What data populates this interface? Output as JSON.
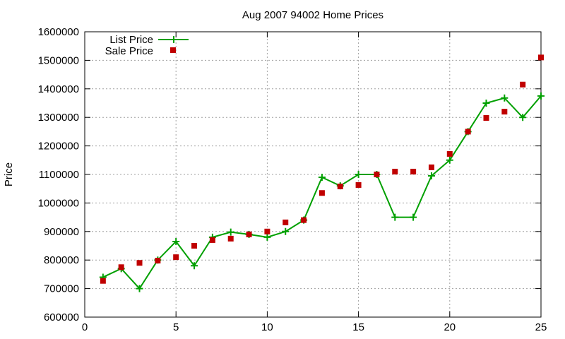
{
  "chart_data": {
    "type": "line",
    "title": "Aug 2007 94002 Home Prices",
    "xlabel": "",
    "ylabel": "Price",
    "xlim": [
      0,
      25
    ],
    "ylim": [
      600000,
      1600000
    ],
    "x_ticks": [
      "0",
      "5",
      "10",
      "15",
      "20",
      "25"
    ],
    "y_ticks": [
      "600000",
      "700000",
      "800000",
      "900000",
      "1000000",
      "1100000",
      "1200000",
      "1300000",
      "1400000",
      "1500000",
      "1600000"
    ],
    "grid": true,
    "legend_position": "top-left",
    "series": [
      {
        "name": "List Price",
        "style": "line-with-plus-markers",
        "color": "#00a000",
        "x": [
          1,
          2,
          3,
          4,
          5,
          6,
          7,
          8,
          9,
          10,
          11,
          12,
          13,
          14,
          15,
          16,
          17,
          18,
          19,
          20,
          21,
          22,
          23,
          24,
          25
        ],
        "values": [
          740000,
          770000,
          700000,
          800000,
          865000,
          780000,
          880000,
          898000,
          890000,
          880000,
          900000,
          940000,
          1090000,
          1060000,
          1100000,
          1100000,
          950000,
          950000,
          1095000,
          1150000,
          1250000,
          1350000,
          1368000,
          1300000,
          1375000
        ]
      },
      {
        "name": "Sale Price",
        "style": "square-markers",
        "color": "#c00000",
        "x": [
          1,
          2,
          3,
          4,
          5,
          6,
          7,
          8,
          9,
          10,
          11,
          12,
          13,
          14,
          15,
          16,
          17,
          18,
          19,
          20,
          21,
          22,
          23,
          24,
          25
        ],
        "values": [
          727000,
          775000,
          790000,
          798000,
          810000,
          850000,
          870000,
          875000,
          890000,
          900000,
          932000,
          940000,
          1035000,
          1058000,
          1063000,
          1100000,
          1110000,
          1110000,
          1125000,
          1172000,
          1250000,
          1298000,
          1320000,
          1415000,
          1510000
        ]
      }
    ]
  }
}
